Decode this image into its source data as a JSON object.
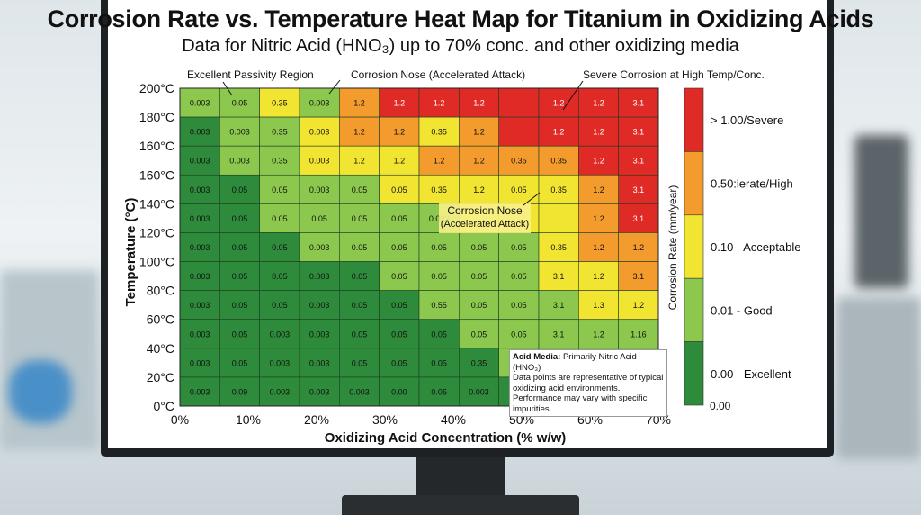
{
  "title": "Corrosion Rate vs. Temperature Heat Map for Titanium in Oxidizing Acids",
  "subtitle": "Data for Nitric Acid (HNO₃) up to 70% conc. and other oxidizing media",
  "annotations": {
    "top_left": "Excellent Passivity Region",
    "top_mid": "Corrosion Nose (Accelerated Attack)",
    "top_right": "Severe Corrosion at High Temp/Conc.",
    "inner_line1": "Corrosion Nose",
    "inner_line2": "(Accelerated Attack)"
  },
  "notes": {
    "heading": "Acid Media:",
    "heading_rest": " Primarily Nitric Acid (HNO₃)",
    "body": "Data points are representative of typical oxidizing acid environments. Performance may vary with specific impurities."
  },
  "legend": {
    "axis_label": "Corrosion Rate (mm/year)",
    "bands": [
      {
        "label": "> 1.00/Severe",
        "color": "#e02a26"
      },
      {
        "label": "0.50:lerate/High",
        "color": "#f39b2d"
      },
      {
        "label": "0.10 -  Acceptable",
        "color": "#f2e531"
      },
      {
        "label": "0.01 - Good",
        "color": "#8cc84e"
      },
      {
        "label": "0.00 - Excellent",
        "color": "#2e8b3b"
      }
    ],
    "bottom_label": "0.00"
  },
  "chart_data": {
    "type": "heatmap",
    "title": "Corrosion Rate vs. Temperature Heat Map for Titanium in Oxidizing Acids",
    "xlabel": "Oxidizing Acid Concentration (% w/w)",
    "ylabel": "Temperature (°C)",
    "x_ticks": [
      "0%",
      "10%",
      "20%",
      "30%",
      "40%",
      "50%",
      "60%",
      "70%"
    ],
    "y_ticks": [
      "200°C",
      "180°C",
      "160°C",
      "160°C",
      "140°C",
      "120°C",
      "100°C",
      "80°C",
      "60°C",
      "40°C",
      "20°C",
      "0°C"
    ],
    "xlim": [
      0,
      70
    ],
    "ylim": [
      0,
      200
    ],
    "colors": {
      "0": "#2e8b3b",
      "1": "#8cc84e",
      "2": "#f2e531",
      "3": "#f39b2d",
      "4": "#e02a26"
    },
    "cols": 12,
    "rows": [
      {
        "values": [
          "0.003",
          "0.05",
          "0.35",
          "0.003",
          "1.2",
          "1.2",
          "1.2",
          "1.2",
          "",
          "1.2",
          "1.2",
          "3.1"
        ],
        "levels": [
          1,
          1,
          2,
          1,
          3,
          4,
          4,
          4,
          4,
          4,
          4,
          4
        ]
      },
      {
        "values": [
          "0.003",
          "0.003",
          "0.35",
          "0.003",
          "1.2",
          "1.2",
          "0.35",
          "1.2",
          "",
          "1.2",
          "1.2",
          "3.1"
        ],
        "levels": [
          0,
          1,
          1,
          2,
          3,
          3,
          2,
          3,
          4,
          4,
          4,
          4
        ]
      },
      {
        "values": [
          "0.003",
          "0.003",
          "0.35",
          "0.003",
          "1.2",
          "1.2",
          "1.2",
          "1.2",
          "0.35",
          "0.35",
          "1.2",
          "3.1"
        ],
        "levels": [
          0,
          1,
          1,
          2,
          2,
          2,
          3,
          3,
          3,
          3,
          4,
          4
        ]
      },
      {
        "values": [
          "0.003",
          "0.05",
          "0.05",
          "0.003",
          "0.05",
          "0.05",
          "0.35",
          "1.2",
          "0.05",
          "0.35",
          "1.2",
          "3.1"
        ],
        "levels": [
          0,
          0,
          1,
          1,
          1,
          2,
          2,
          2,
          2,
          2,
          3,
          4
        ]
      },
      {
        "values": [
          "0.003",
          "0.05",
          "0.05",
          "0.05",
          "0.05",
          "0.05",
          "0.003",
          "",
          "",
          "",
          "1.2",
          "3.1"
        ],
        "levels": [
          0,
          0,
          1,
          1,
          1,
          1,
          1,
          2,
          2,
          2,
          3,
          4
        ]
      },
      {
        "values": [
          "0.003",
          "0.05",
          "0.05",
          "0.003",
          "0.05",
          "0.05",
          "0.05",
          "0.05",
          "0.05",
          "0.35",
          "1.2",
          "1.2"
        ],
        "levels": [
          0,
          0,
          0,
          1,
          1,
          1,
          1,
          1,
          1,
          2,
          3,
          3
        ]
      },
      {
        "values": [
          "0.003",
          "0.05",
          "0.05",
          "0.003",
          "0.05",
          "0.05",
          "0.05",
          "0.05",
          "0.05",
          "3.1",
          "1.2",
          "3.1"
        ],
        "levels": [
          0,
          0,
          0,
          0,
          0,
          1,
          1,
          1,
          1,
          2,
          2,
          3
        ]
      },
      {
        "values": [
          "0.003",
          "0.05",
          "0.05",
          "0.003",
          "0.05",
          "0.05",
          "0.55",
          "0.05",
          "0.05",
          "3.1",
          "1.3",
          "1.2"
        ],
        "levels": [
          0,
          0,
          0,
          0,
          0,
          0,
          1,
          1,
          1,
          1,
          2,
          2
        ]
      },
      {
        "values": [
          "0.003",
          "0.05",
          "0.003",
          "0.003",
          "0.05",
          "0.05",
          "0.05",
          "0.05",
          "0.05",
          "3.1",
          "1.2",
          "1.16"
        ],
        "levels": [
          0,
          0,
          0,
          0,
          0,
          0,
          0,
          1,
          1,
          1,
          1,
          1
        ]
      },
      {
        "values": [
          "0.003",
          "0.05",
          "0.003",
          "0.003",
          "0.05",
          "0.05",
          "0.05",
          "0.35",
          "0.003",
          "",
          "",
          ""
        ],
        "levels": [
          0,
          0,
          0,
          0,
          0,
          0,
          0,
          0,
          1,
          1,
          1,
          1
        ]
      },
      {
        "values": [
          "0.003",
          "0.09",
          "0.003",
          "0.003",
          "0.003",
          "0.00",
          "0.05",
          "0.003",
          "0.003",
          "",
          "",
          ""
        ],
        "levels": [
          0,
          0,
          0,
          0,
          0,
          0,
          0,
          0,
          0,
          1,
          1,
          1
        ]
      }
    ]
  }
}
